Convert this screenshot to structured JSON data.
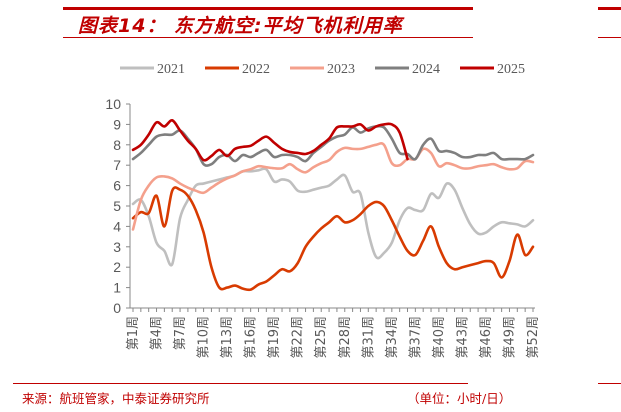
{
  "title": "图表14： 东方航空:平均飞机利用率",
  "source": "来源：航班管家，中泰证券研究所",
  "unit": "（单位：小时/日）",
  "chart_data": {
    "type": "line",
    "title": "东方航空:平均飞机利用率",
    "xlabel": "",
    "ylabel": "小时/日",
    "ylim": [
      0,
      10
    ],
    "yticks": [
      "0",
      "1",
      "2",
      "3",
      "4",
      "5",
      "6",
      "7",
      "8",
      "9",
      "10"
    ],
    "x_tick_labels": [
      "第1周",
      "第4周",
      "第7周",
      "第10周",
      "第13周",
      "第16周",
      "第19周",
      "第22周",
      "第25周",
      "第28周",
      "第31周",
      "第34周",
      "第37周",
      "第40周",
      "第43周",
      "第46周",
      "第49周",
      "第52周"
    ],
    "legend_position": "top",
    "series": [
      {
        "name": "2021",
        "color": "#bfbfbf",
        "values": [
          5.1,
          5.3,
          4.5,
          3.2,
          2.8,
          2.15,
          4.4,
          5.3,
          6.0,
          6.1,
          6.2,
          6.3,
          6.4,
          6.5,
          6.7,
          6.7,
          6.75,
          6.8,
          6.2,
          6.3,
          6.2,
          5.75,
          5.7,
          5.8,
          5.9,
          6.0,
          6.3,
          6.5,
          5.7,
          5.6,
          3.7,
          2.5,
          2.7,
          3.2,
          4.3,
          4.9,
          4.8,
          4.8,
          5.6,
          5.4,
          6.1,
          5.8,
          4.9,
          4.1,
          3.65,
          3.7,
          4.0,
          4.2,
          4.15,
          4.1,
          4.0,
          4.3
        ]
      },
      {
        "name": "2022",
        "color": "#d83b01",
        "values": [
          4.4,
          4.7,
          4.65,
          5.5,
          4.0,
          5.75,
          5.8,
          5.5,
          4.8,
          3.7,
          2.0,
          1.0,
          1.0,
          1.1,
          0.95,
          0.9,
          1.15,
          1.3,
          1.6,
          1.9,
          1.8,
          2.2,
          3.0,
          3.5,
          3.9,
          4.2,
          4.5,
          4.2,
          4.3,
          4.6,
          5.0,
          5.2,
          5.0,
          4.3,
          3.5,
          2.8,
          2.6,
          3.3,
          4.0,
          3.0,
          2.2,
          1.9,
          2.0,
          2.1,
          2.2,
          2.3,
          2.2,
          1.5,
          2.3,
          3.6,
          2.6,
          3.0
        ]
      },
      {
        "name": "2023",
        "color": "#f4a08c",
        "values": [
          3.85,
          5.3,
          6.0,
          6.4,
          6.45,
          6.35,
          6.1,
          5.9,
          5.75,
          5.65,
          5.9,
          6.15,
          6.35,
          6.5,
          6.7,
          6.8,
          6.95,
          6.9,
          6.85,
          6.85,
          7.05,
          6.8,
          6.65,
          6.9,
          7.1,
          7.25,
          7.65,
          7.85,
          7.8,
          7.8,
          7.9,
          8.0,
          8.0,
          7.1,
          7.0,
          7.3,
          7.3,
          7.8,
          7.6,
          6.95,
          7.1,
          7.0,
          6.85,
          6.85,
          6.95,
          7.0,
          7.05,
          6.9,
          6.8,
          6.85,
          7.2,
          7.15
        ]
      },
      {
        "name": "2024",
        "color": "#7f7f7f",
        "values": [
          7.3,
          7.6,
          8.0,
          8.4,
          8.5,
          8.5,
          8.7,
          8.3,
          7.8,
          7.05,
          7.05,
          7.4,
          7.5,
          7.2,
          7.5,
          7.4,
          7.6,
          7.75,
          7.4,
          7.5,
          7.5,
          7.4,
          7.2,
          7.6,
          7.9,
          8.2,
          8.4,
          8.5,
          8.85,
          8.6,
          8.8,
          8.9,
          8.85,
          8.3,
          7.6,
          7.55,
          7.3,
          8.0,
          8.3,
          7.7,
          7.7,
          7.6,
          7.4,
          7.4,
          7.5,
          7.5,
          7.6,
          7.3,
          7.3,
          7.3,
          7.3,
          7.5
        ]
      },
      {
        "name": "2025",
        "color": "#c00000",
        "values": [
          7.75,
          8.0,
          8.5,
          9.1,
          8.9,
          9.2,
          8.7,
          8.2,
          7.8,
          7.25,
          7.45,
          7.75,
          7.45,
          7.8,
          7.9,
          7.95,
          8.2,
          8.4,
          8.1,
          7.8,
          7.65,
          7.6,
          7.55,
          7.7,
          8.0,
          8.3,
          8.85,
          8.9,
          8.9,
          9.0,
          8.7,
          8.9,
          9.0,
          9.0,
          8.6,
          7.3
        ]
      }
    ]
  }
}
